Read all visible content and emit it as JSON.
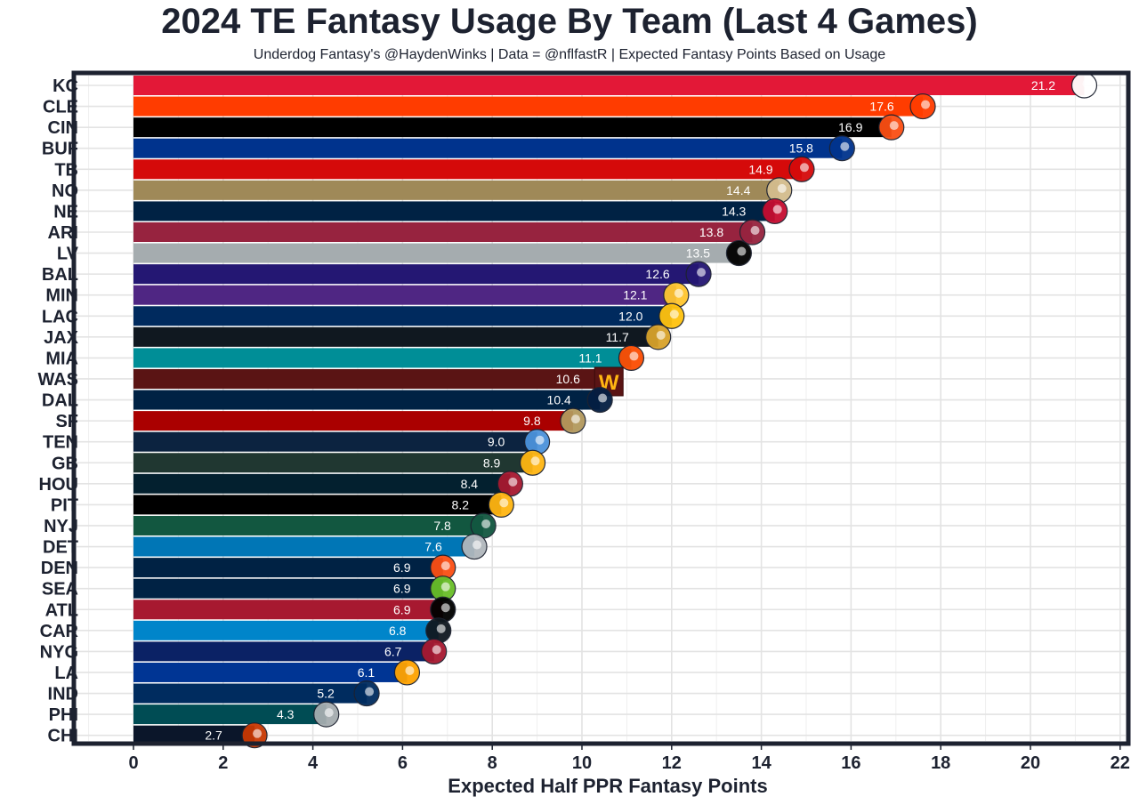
{
  "header": {
    "title": "2024 TE Fantasy Usage By Team (Last 4 Games)",
    "subtitle": "Underdog Fantasy's @HaydenWinks | Data = @nflfastR | Expected Fantasy Points Based on Usage"
  },
  "chart_data": {
    "type": "bar",
    "orientation": "horizontal",
    "title": "2024 TE Fantasy Usage By Team (Last 4 Games)",
    "subtitle": "Underdog Fantasy's @HaydenWinks | Data = @nflfastR | Expected Fantasy Points Based on Usage",
    "xlabel": "Expected Half PPR Fantasy Points",
    "ylabel": "",
    "xlim": [
      -1,
      22.2
    ],
    "xticks": [
      0,
      2,
      4,
      6,
      8,
      10,
      12,
      14,
      16,
      18,
      20,
      22
    ],
    "grid": true,
    "categories": [
      "KC",
      "CLE",
      "CIN",
      "BUF",
      "TB",
      "NO",
      "NE",
      "ARI",
      "LV",
      "BAL",
      "MIN",
      "LAC",
      "JAX",
      "MIA",
      "WAS",
      "DAL",
      "SF",
      "TEN",
      "GB",
      "HOU",
      "PIT",
      "NYJ",
      "DET",
      "DEN",
      "SEA",
      "ATL",
      "CAR",
      "NYG",
      "LA",
      "IND",
      "PHI",
      "CHI"
    ],
    "values": [
      21.2,
      17.6,
      16.9,
      15.8,
      14.9,
      14.4,
      14.3,
      13.8,
      13.5,
      12.6,
      12.1,
      12.0,
      11.7,
      11.1,
      10.6,
      10.4,
      9.8,
      9.0,
      8.9,
      8.4,
      8.2,
      7.8,
      7.6,
      6.9,
      6.9,
      6.9,
      6.8,
      6.7,
      6.1,
      5.2,
      4.3,
      2.7
    ],
    "value_labels": [
      "21.2",
      "17.6",
      "16.9",
      "15.8",
      "14.9",
      "14.4",
      "14.3",
      "13.8",
      "13.5",
      "12.6",
      "12.1",
      "12.0",
      "11.7",
      "11.1",
      "10.6",
      "10.4",
      "9.8",
      "9.0",
      "8.9",
      "8.4",
      "8.2",
      "7.8",
      "7.6",
      "6.9",
      "6.9",
      "6.9",
      "6.8",
      "6.7",
      "6.1",
      "5.2",
      "4.3",
      "2.7"
    ],
    "bar_colors": [
      "#e31837",
      "#ff3c00",
      "#000000",
      "#00338d",
      "#d50a0a",
      "#9f8958",
      "#002244",
      "#97233f",
      "#a5acaf",
      "#241773",
      "#4f2683",
      "#002a5e",
      "#101820",
      "#008e97",
      "#5a1414",
      "#002244",
      "#aa0000",
      "#0c2340",
      "#203731",
      "#03202f",
      "#000000",
      "#125740",
      "#0076b6",
      "#002244",
      "#002244",
      "#a71930",
      "#0085ca",
      "#0b2265",
      "#003594",
      "#002c5f",
      "#004c54",
      "#0b162a"
    ],
    "logo_icons": [
      "kc-logo-icon",
      "cle-logo-icon",
      "cin-logo-icon",
      "buf-logo-icon",
      "tb-logo-icon",
      "no-logo-icon",
      "ne-logo-icon",
      "ari-logo-icon",
      "lv-logo-icon",
      "bal-logo-icon",
      "min-logo-icon",
      "lac-logo-icon",
      "jax-logo-icon",
      "mia-logo-icon",
      "was-logo-icon",
      "dal-logo-icon",
      "sf-logo-icon",
      "ten-logo-icon",
      "gb-logo-icon",
      "hou-logo-icon",
      "pit-logo-icon",
      "nyj-logo-icon",
      "det-logo-icon",
      "den-logo-icon",
      "sea-logo-icon",
      "atl-logo-icon",
      "car-logo-icon",
      "nyg-logo-icon",
      "la-logo-icon",
      "ind-logo-icon",
      "phi-logo-icon",
      "chi-logo-icon"
    ],
    "logo_colors": [
      "#ffffff",
      "#ff3c00",
      "#fb4f14",
      "#00338d",
      "#d50a0a",
      "#d3bc8d",
      "#c60c30",
      "#97233f",
      "#000000",
      "#241773",
      "#ffc62f",
      "#ffc20e",
      "#d7a22a",
      "#fc4c02",
      "#ffb612",
      "#041e42",
      "#b3995d",
      "#4b92db",
      "#ffb612",
      "#a71930",
      "#ffb612",
      "#125740",
      "#b0b7bc",
      "#fb4f14",
      "#69be28",
      "#000000",
      "#101820",
      "#a71930",
      "#ffa300",
      "#002c5f",
      "#a5acaf",
      "#c83803"
    ],
    "logo_text": [
      "",
      "",
      "",
      "",
      "",
      "",
      "",
      "",
      "",
      "",
      "",
      "",
      "",
      "",
      "W",
      "",
      "",
      "",
      "",
      "",
      "",
      "",
      "",
      "",
      "",
      "",
      "",
      "",
      "",
      "",
      "",
      ""
    ]
  }
}
